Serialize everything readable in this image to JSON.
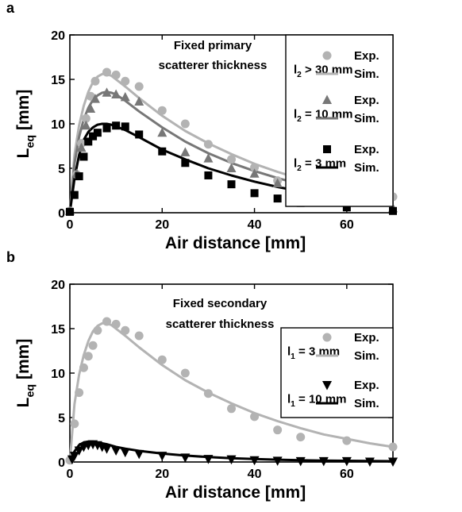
{
  "chart_data": [
    {
      "panel": "a",
      "type": "line",
      "annotation": [
        "Fixed primary",
        "scatterer thickness"
      ],
      "xlabel": "Air distance [mm]",
      "ylabel": {
        "main": "L",
        "sub": "eq",
        "unit": " [mm]"
      },
      "xlim": [
        0,
        70
      ],
      "ylim": [
        0,
        20
      ],
      "xticks": [
        0,
        20,
        40,
        60
      ],
      "yticks": [
        0,
        5,
        10,
        15,
        20
      ],
      "grid": false,
      "legend_position": "right",
      "groups": [
        {
          "label": {
            "main": "l",
            "sub": "2",
            "rest": " > 30 mm"
          },
          "color": "#b3b3b3",
          "marker": "circle",
          "exp_label": "Exp.",
          "sim_label": "Sim.",
          "exp": [
            [
              0,
              0.2
            ],
            [
              1.5,
              4.3
            ],
            [
              2.5,
              7.8
            ],
            [
              3.5,
              10.6
            ],
            [
              4.5,
              13.1
            ],
            [
              5.5,
              14.8
            ],
            [
              8,
              15.8
            ],
            [
              10,
              15.5
            ],
            [
              12,
              14.8
            ],
            [
              15,
              14.2
            ],
            [
              20,
              11.5
            ],
            [
              25,
              10.0
            ],
            [
              30,
              7.7
            ],
            [
              35,
              6.0
            ],
            [
              40,
              5.1
            ],
            [
              45,
              3.6
            ],
            [
              50,
              2.8
            ],
            [
              60,
              2.4
            ],
            [
              70,
              1.8
            ]
          ],
          "sim": [
            [
              0,
              0
            ],
            [
              1,
              6.5
            ],
            [
              2,
              9.8
            ],
            [
              3,
              12.0
            ],
            [
              4,
              13.6
            ],
            [
              5,
              14.7
            ],
            [
              6,
              15.3
            ],
            [
              7,
              15.6
            ],
            [
              8,
              15.6
            ],
            [
              9,
              15.4
            ],
            [
              10,
              15.0
            ],
            [
              12,
              14.2
            ],
            [
              15,
              12.9
            ],
            [
              20,
              10.9
            ],
            [
              25,
              9.2
            ],
            [
              30,
              7.8
            ],
            [
              35,
              6.6
            ],
            [
              40,
              5.5
            ],
            [
              45,
              4.6
            ],
            [
              50,
              3.8
            ],
            [
              55,
              3.1
            ],
            [
              60,
              2.6
            ],
            [
              65,
              2.1
            ],
            [
              70,
              1.7
            ]
          ]
        },
        {
          "label": {
            "main": "l",
            "sub": "2",
            "rest": " = 10 mm"
          },
          "color": "#777777",
          "marker": "triangle-up",
          "exp_label": "Exp.",
          "sim_label": "Sim.",
          "exp": [
            [
              0,
              0.2
            ],
            [
              1.5,
              4.4
            ],
            [
              2.5,
              7.3
            ],
            [
              3.5,
              9.8
            ],
            [
              4.5,
              11.7
            ],
            [
              5.5,
              12.8
            ],
            [
              8,
              13.5
            ],
            [
              10,
              13.3
            ],
            [
              12,
              13.0
            ],
            [
              15,
              12.5
            ],
            [
              20,
              9.0
            ],
            [
              25,
              6.8
            ],
            [
              30,
              6.1
            ],
            [
              35,
              5.0
            ],
            [
              40,
              4.4
            ],
            [
              45,
              3.3
            ],
            [
              50,
              2.6
            ],
            [
              60,
              1.8
            ],
            [
              70,
              0.5
            ]
          ],
          "sim": [
            [
              0,
              0
            ],
            [
              1,
              5.5
            ],
            [
              2,
              8.5
            ],
            [
              3,
              10.5
            ],
            [
              4,
              11.8
            ],
            [
              5,
              12.7
            ],
            [
              6,
              13.2
            ],
            [
              7,
              13.5
            ],
            [
              8,
              13.6
            ],
            [
              9,
              13.5
            ],
            [
              10,
              13.3
            ],
            [
              12,
              12.6
            ],
            [
              15,
              11.4
            ],
            [
              20,
              9.6
            ],
            [
              25,
              8.0
            ],
            [
              30,
              6.7
            ],
            [
              35,
              5.6
            ],
            [
              40,
              4.7
            ],
            [
              45,
              3.9
            ],
            [
              50,
              3.2
            ],
            [
              55,
              2.7
            ],
            [
              60,
              2.3
            ],
            [
              65,
              1.9
            ],
            [
              70,
              1.5
            ]
          ]
        },
        {
          "label": {
            "main": "l",
            "sub": "2",
            "rest": " = 3 mm"
          },
          "color": "#000000",
          "marker": "square",
          "exp_label": "Exp.",
          "sim_label": "Sim.",
          "exp": [
            [
              0,
              0.1
            ],
            [
              1,
              2.0
            ],
            [
              2,
              4.1
            ],
            [
              3,
              6.3
            ],
            [
              4,
              8.0
            ],
            [
              5,
              8.6
            ],
            [
              6,
              9.0
            ],
            [
              8,
              9.5
            ],
            [
              10,
              9.8
            ],
            [
              12,
              9.7
            ],
            [
              15,
              8.8
            ],
            [
              20,
              6.9
            ],
            [
              25,
              5.6
            ],
            [
              30,
              4.2
            ],
            [
              35,
              3.2
            ],
            [
              40,
              2.2
            ],
            [
              45,
              1.6
            ],
            [
              50,
              1.1
            ],
            [
              60,
              0.6
            ],
            [
              70,
              0.2
            ]
          ],
          "sim": [
            [
              0,
              0
            ],
            [
              1,
              3.8
            ],
            [
              2,
              6.5
            ],
            [
              3,
              8.2
            ],
            [
              4,
              9.1
            ],
            [
              5,
              9.6
            ],
            [
              6,
              9.9
            ],
            [
              7,
              10.0
            ],
            [
              8,
              10.0
            ],
            [
              9,
              9.9
            ],
            [
              10,
              9.7
            ],
            [
              12,
              9.3
            ],
            [
              15,
              8.5
            ],
            [
              20,
              7.1
            ],
            [
              25,
              6.0
            ],
            [
              30,
              5.0
            ],
            [
              35,
              4.2
            ],
            [
              40,
              3.5
            ],
            [
              45,
              2.9
            ],
            [
              50,
              2.4
            ],
            [
              55,
              2.0
            ],
            [
              60,
              1.7
            ],
            [
              65,
              1.4
            ],
            [
              70,
              1.2
            ]
          ]
        }
      ]
    },
    {
      "panel": "b",
      "type": "line",
      "annotation": [
        "Fixed secondary",
        "scatterer thickness"
      ],
      "xlabel": "Air distance [mm]",
      "ylabel": {
        "main": "L",
        "sub": "eq",
        "unit": " [mm]"
      },
      "xlim": [
        0,
        70
      ],
      "ylim": [
        0,
        20
      ],
      "xticks": [
        0,
        20,
        40,
        60
      ],
      "yticks": [
        0,
        5,
        10,
        15,
        20
      ],
      "grid": false,
      "legend_position": "right",
      "groups": [
        {
          "label": {
            "main": "l",
            "sub": "1",
            "rest": " = 3 mm"
          },
          "color": "#b3b3b3",
          "marker": "circle",
          "exp_label": "Exp.",
          "sim_label": "Sim.",
          "exp": [
            [
              0,
              0.2
            ],
            [
              1,
              4.3
            ],
            [
              2,
              7.8
            ],
            [
              3,
              10.6
            ],
            [
              4,
              11.9
            ],
            [
              5,
              13.1
            ],
            [
              6,
              14.8
            ],
            [
              8,
              15.8
            ],
            [
              10,
              15.5
            ],
            [
              12,
              14.8
            ],
            [
              15,
              14.2
            ],
            [
              20,
              11.5
            ],
            [
              25,
              10.0
            ],
            [
              30,
              7.7
            ],
            [
              35,
              6.0
            ],
            [
              40,
              5.1
            ],
            [
              45,
              3.6
            ],
            [
              50,
              2.8
            ],
            [
              60,
              2.4
            ],
            [
              70,
              1.7
            ]
          ],
          "sim": [
            [
              0,
              0
            ],
            [
              1,
              6.5
            ],
            [
              2,
              9.8
            ],
            [
              3,
              12.0
            ],
            [
              4,
              13.6
            ],
            [
              5,
              14.7
            ],
            [
              6,
              15.3
            ],
            [
              7,
              15.6
            ],
            [
              8,
              15.6
            ],
            [
              9,
              15.4
            ],
            [
              10,
              15.0
            ],
            [
              12,
              14.2
            ],
            [
              15,
              12.9
            ],
            [
              20,
              10.9
            ],
            [
              25,
              9.2
            ],
            [
              30,
              7.8
            ],
            [
              35,
              6.6
            ],
            [
              40,
              5.5
            ],
            [
              45,
              4.6
            ],
            [
              50,
              3.8
            ],
            [
              55,
              3.1
            ],
            [
              60,
              2.6
            ],
            [
              65,
              2.1
            ],
            [
              70,
              1.7
            ]
          ]
        },
        {
          "label": {
            "main": "l",
            "sub": "1",
            "rest": " = 10 mm"
          },
          "color": "#000000",
          "marker": "triangle-down",
          "exp_label": "Exp.",
          "sim_label": "Sim.",
          "exp": [
            [
              0.5,
              0.3
            ],
            [
              1,
              0.7
            ],
            [
              2,
              1.3
            ],
            [
              3,
              1.7
            ],
            [
              4,
              1.9
            ],
            [
              5,
              2.0
            ],
            [
              6,
              1.9
            ],
            [
              7,
              1.7
            ],
            [
              8,
              1.5
            ],
            [
              10,
              1.3
            ],
            [
              12,
              1.1
            ],
            [
              15,
              0.9
            ],
            [
              20,
              0.7
            ],
            [
              25,
              0.5
            ],
            [
              30,
              0.35
            ],
            [
              35,
              0.3
            ],
            [
              40,
              0.2
            ],
            [
              45,
              0.15
            ],
            [
              50,
              0.1
            ],
            [
              55,
              0.1
            ],
            [
              60,
              0.1
            ],
            [
              65,
              0.05
            ],
            [
              70,
              0.05
            ]
          ],
          "sim": [
            [
              0,
              0
            ],
            [
              1,
              1.2
            ],
            [
              2,
              1.9
            ],
            [
              3,
              2.2
            ],
            [
              4,
              2.3
            ],
            [
              5,
              2.3
            ],
            [
              6,
              2.2
            ],
            [
              7,
              2.1
            ],
            [
              8,
              2.0
            ],
            [
              10,
              1.7
            ],
            [
              12,
              1.5
            ],
            [
              15,
              1.25
            ],
            [
              20,
              0.95
            ],
            [
              25,
              0.72
            ],
            [
              30,
              0.55
            ],
            [
              35,
              0.42
            ],
            [
              40,
              0.33
            ],
            [
              45,
              0.26
            ],
            [
              50,
              0.2
            ],
            [
              55,
              0.16
            ],
            [
              60,
              0.13
            ],
            [
              65,
              0.11
            ],
            [
              70,
              0.09
            ]
          ]
        }
      ]
    }
  ]
}
